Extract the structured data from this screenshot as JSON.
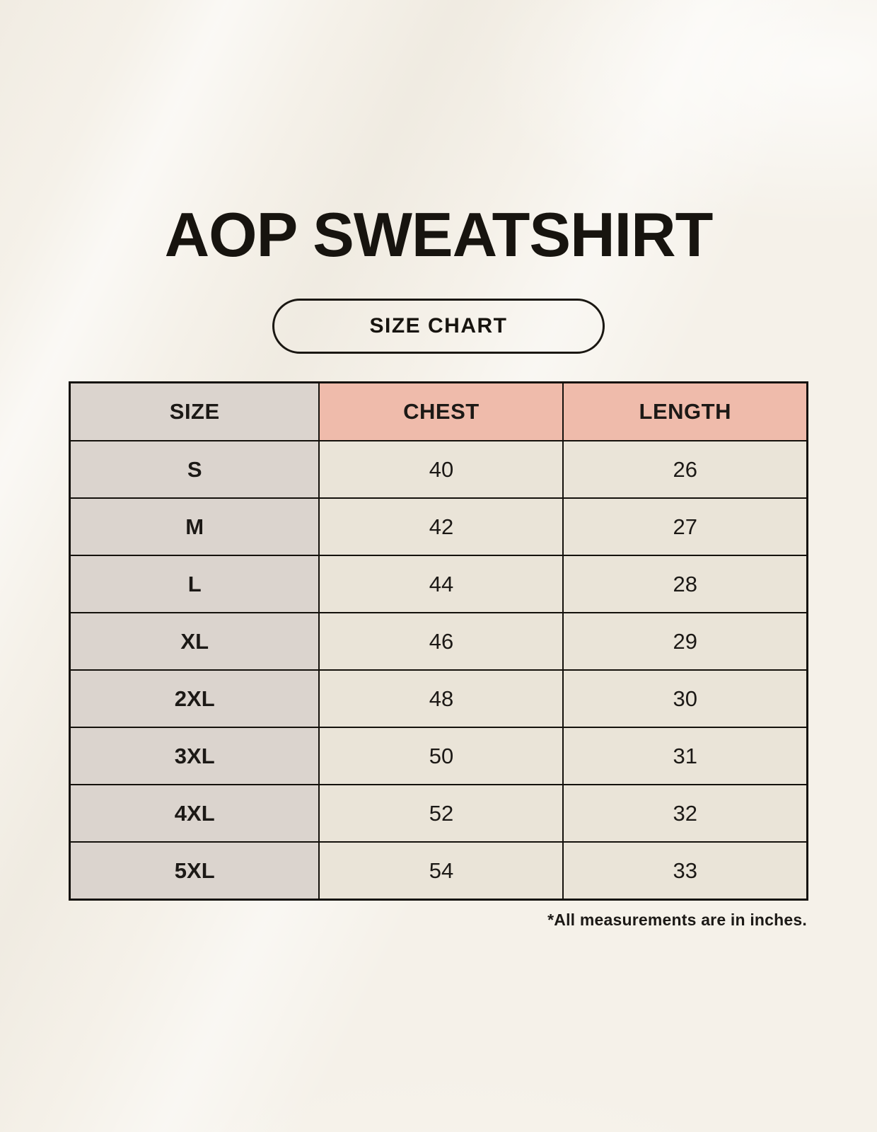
{
  "page": {
    "title": "AOP SWEATSHIRT",
    "badge_label": "SIZE CHART",
    "footnote": "*All measurements are in inches."
  },
  "chart_data": {
    "type": "table",
    "title": "AOP SWEATSHIRT",
    "subtitle": "SIZE CHART",
    "columns": [
      "SIZE",
      "CHEST",
      "LENGTH"
    ],
    "rows": [
      [
        "S",
        "40",
        "26"
      ],
      [
        "M",
        "42",
        "27"
      ],
      [
        "L",
        "44",
        "28"
      ],
      [
        "XL",
        "46",
        "29"
      ],
      [
        "2XL",
        "48",
        "30"
      ],
      [
        "3XL",
        "50",
        "31"
      ],
      [
        "4XL",
        "52",
        "32"
      ],
      [
        "5XL",
        "54",
        "33"
      ]
    ],
    "units": "inches",
    "note": "*All measurements are in inches."
  },
  "colors": {
    "page_background": "#F5F1E9",
    "size_column_bg": "#DBD4CE",
    "header_accent_bg": "#EFBBAB",
    "data_cell_bg": "#EAE4D8",
    "border": "#14110C",
    "text": "#1C1916"
  }
}
